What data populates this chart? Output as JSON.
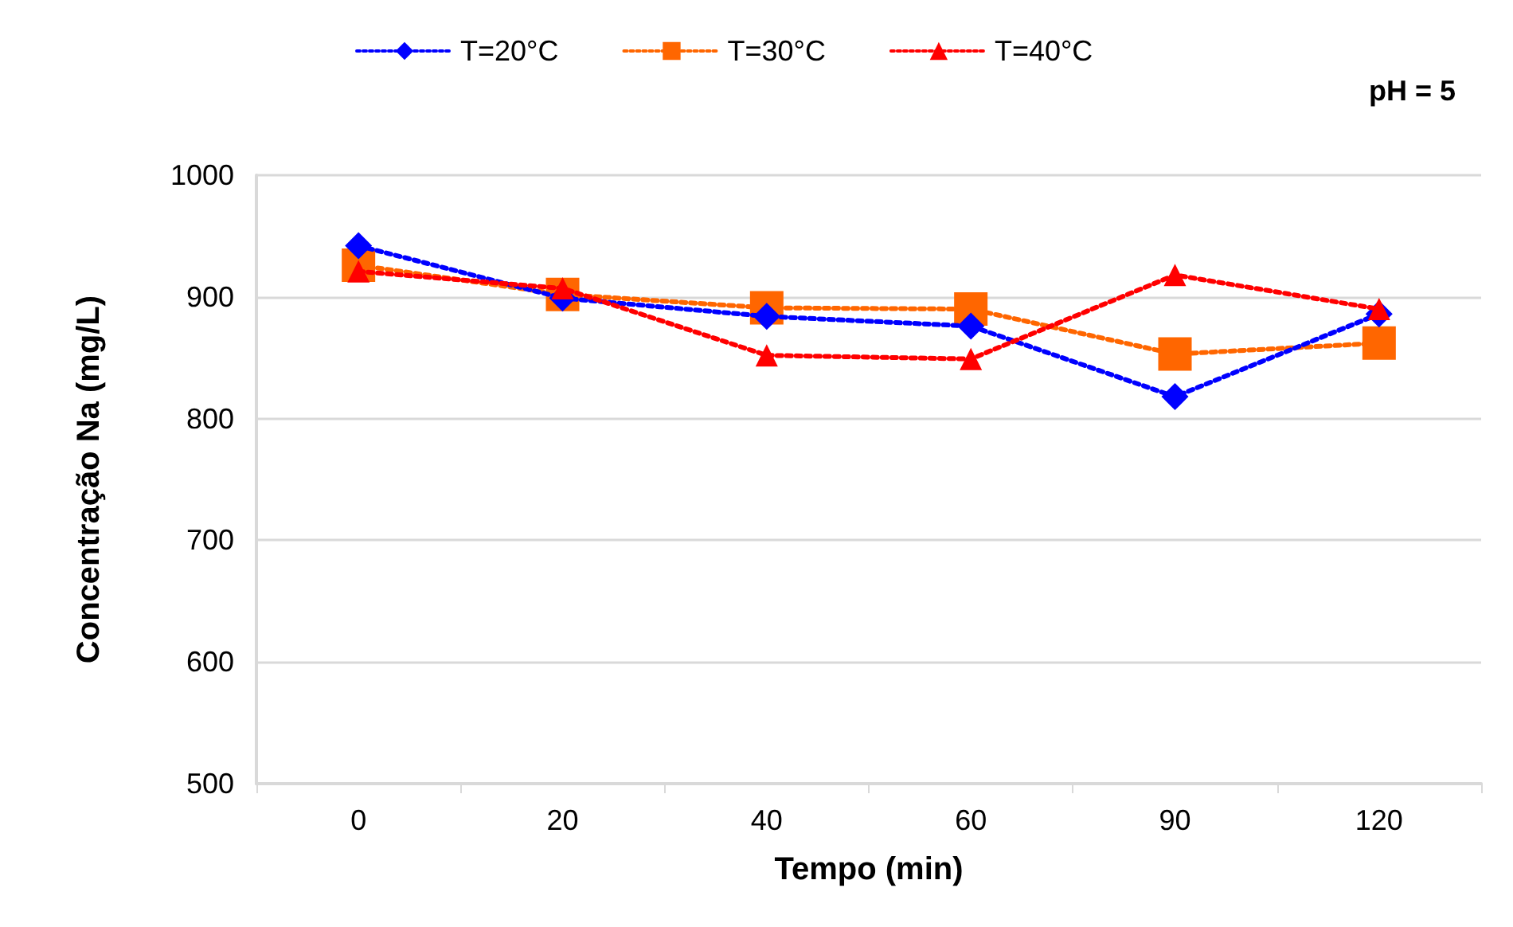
{
  "chart_data": {
    "type": "line",
    "xlabel": "Tempo (min)",
    "ylabel": "Concentração Na (mg/L)",
    "categories": [
      "0",
      "20",
      "40",
      "60",
      "90",
      "120"
    ],
    "series": [
      {
        "name": "T=20°C",
        "color": "#0000ff",
        "marker": "diamond",
        "values": [
          942,
          899,
          884,
          876,
          818,
          886
        ]
      },
      {
        "name": "T=30°C",
        "color": "#ff6600",
        "marker": "square",
        "values": [
          926,
          902,
          891,
          890,
          853,
          862
        ]
      },
      {
        "name": "T=40°C",
        "color": "#ff0000",
        "marker": "triangle",
        "values": [
          921,
          907,
          852,
          849,
          918,
          890
        ]
      }
    ],
    "ylim": [
      500,
      1000
    ],
    "yticks": [
      500,
      600,
      700,
      800,
      900,
      1000
    ],
    "grid": "y",
    "legend": "top",
    "line_style": "dotted",
    "annotations": [
      "pH = 5"
    ]
  }
}
